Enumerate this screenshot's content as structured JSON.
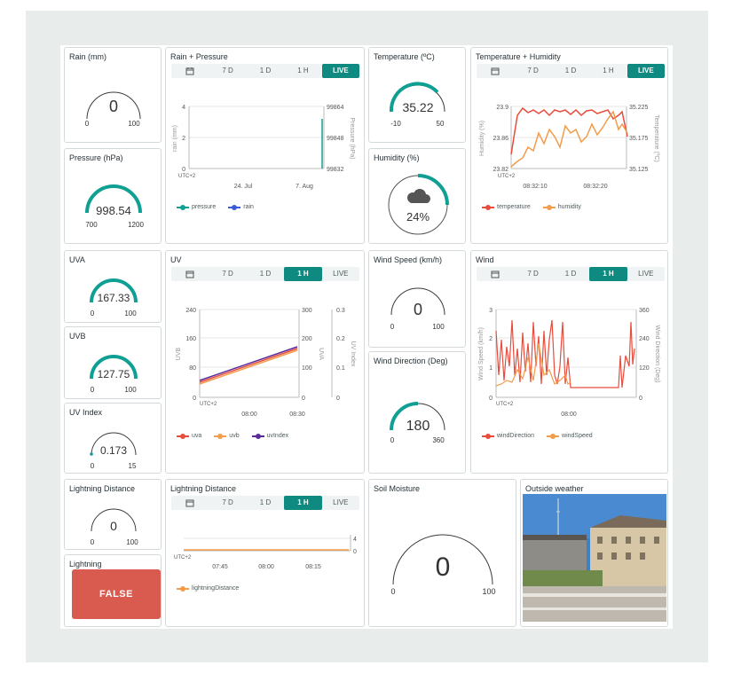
{
  "colors": {
    "accent": "#0f8a80",
    "red": "#e74c3c",
    "orange": "#f39c4a",
    "blue": "#3b5bdb",
    "purple": "#5b2b9a",
    "false_bg": "#d95a4e"
  },
  "tabs": {
    "live": "LIVE",
    "h1": "1 H",
    "d1": "1 D",
    "d7": "7 D",
    "calendar_icon": "calendar-icon"
  },
  "rain": {
    "title": "Rain (mm)",
    "value": "0",
    "min": "0",
    "max": "100",
    "fraction": 0
  },
  "pressure": {
    "title": "Pressure (hPa)",
    "value": "998.54",
    "min": "700",
    "max": "1200",
    "fraction": 0.597
  },
  "rain_pressure": {
    "title": "Rain + Pressure",
    "active_tab": "LIVE",
    "y_left_label": "rain (mm)",
    "y_right_label": "Pressure (hPa)",
    "y_left_ticks": [
      "4",
      "2",
      "0"
    ],
    "y_right_ticks": [
      "99864",
      "99848",
      "99832"
    ],
    "x_ticks": [
      "24. Jul",
      "7. Aug"
    ],
    "tz": "UTC+2",
    "legend": [
      "pressure",
      "rain"
    ]
  },
  "temperature": {
    "title": "Temperature (ºC)",
    "value": "35.22",
    "min": "-10",
    "max": "50",
    "fraction": 0.754
  },
  "humidity": {
    "title": "Humidity (%)",
    "value": "24%",
    "fraction": 0.24,
    "icon": "cloud-icon"
  },
  "temp_hum": {
    "title": "Temperature + Humidity",
    "active_tab": "LIVE",
    "y_left_label": "Humidity (%)",
    "y_right_label": "Temperature (ºC)",
    "y_left_ticks": [
      "23.9",
      "23.86",
      "23.82"
    ],
    "y_right_ticks": [
      "35.225",
      "35.175",
      "35.125"
    ],
    "x_ticks": [
      "08:32:10",
      "08:32:20"
    ],
    "tz": "UTC+2",
    "legend": [
      "temperature",
      "humidity"
    ]
  },
  "uva": {
    "title": "UVA",
    "value": "167.33",
    "min": "0",
    "max": "100",
    "fraction": 1
  },
  "uvb": {
    "title": "UVB",
    "value": "127.75",
    "min": "0",
    "max": "100",
    "fraction": 1
  },
  "uvindex": {
    "title": "UV Index",
    "value": "0.173",
    "min": "0",
    "max": "15",
    "fraction": 0.012
  },
  "uv": {
    "title": "UV",
    "active_tab": "1 H",
    "y_left_label": "UVB",
    "y_mid_label": "UVA",
    "y_right_label": "UV Index",
    "y_left_ticks": [
      "240",
      "160",
      "80",
      "0"
    ],
    "y_mid_ticks": [
      "300",
      "200",
      "100",
      "0"
    ],
    "y_right_ticks": [
      "0.3",
      "0.2",
      "0.1",
      "0"
    ],
    "x_ticks": [
      "08:00",
      "08:30"
    ],
    "tz": "UTC+2",
    "legend": [
      "uva",
      "uvb",
      "uvIndex"
    ]
  },
  "wind_speed": {
    "title": "Wind Speed (km/h)",
    "value": "0",
    "min": "0",
    "max": "100",
    "fraction": 0
  },
  "wind_dir": {
    "title": "Wind Direction (Deg)",
    "value": "180",
    "min": "0",
    "max": "360",
    "fraction": 0.5
  },
  "wind": {
    "title": "Wind",
    "active_tab": "1 H",
    "y_left_label": "Wind Speed (km/h)",
    "y_right_label": "Wind Direction (Deg)",
    "y_left_ticks": [
      "3",
      "2",
      "1",
      "0"
    ],
    "y_right_ticks": [
      "360",
      "240",
      "120",
      "0"
    ],
    "x_ticks": [
      "08:00"
    ],
    "tz": "UTC+2",
    "legend": [
      "windDirection",
      "windSpeed"
    ]
  },
  "lightning_distance_gauge": {
    "title": "Lightning Distance",
    "value": "0",
    "min": "0",
    "max": "100",
    "fraction": 0
  },
  "lightning_distance_chart": {
    "title": "Lightning Distance",
    "active_tab": "1 H",
    "y_right_ticks": [
      "4",
      "0"
    ],
    "x_ticks": [
      "07:45",
      "08:00",
      "08:15"
    ],
    "tz": "UTC+2",
    "legend": [
      "lightningDistance"
    ]
  },
  "lightning": {
    "title": "Lightning",
    "value": "FALSE"
  },
  "soil": {
    "title": "Soil Moisture",
    "value": "0",
    "min": "0",
    "max": "100",
    "fraction": 0
  },
  "outside": {
    "title": "Outside weather"
  }
}
